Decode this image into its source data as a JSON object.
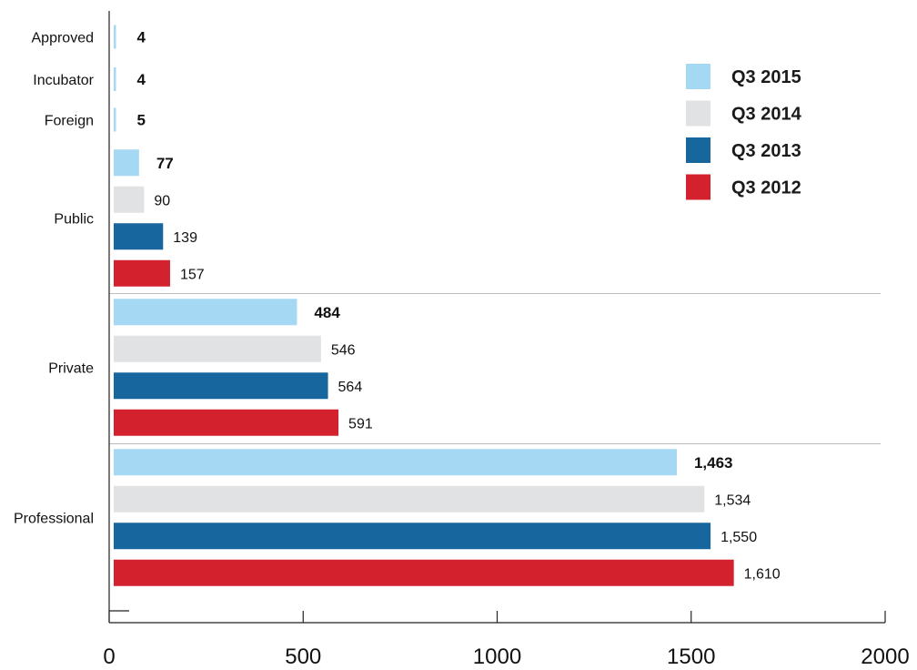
{
  "chart_data": {
    "type": "bar",
    "orientation": "horizontal",
    "title": "",
    "xlabel": "",
    "ylabel": "",
    "xlim": [
      0,
      2000
    ],
    "x_ticks": [
      "0",
      "500",
      "1000",
      "1500",
      "2000"
    ],
    "categories": [
      "Approved",
      "Incubator",
      "Foreign",
      "Public",
      "Private",
      "Professional"
    ],
    "series": [
      {
        "name": "Q3 2015",
        "color": "#a5d8f3",
        "values": [
          4,
          4,
          5,
          77,
          484,
          1463
        ],
        "labels": [
          "4",
          "4",
          "5",
          "77",
          "484",
          "1,463"
        ],
        "label_style": "bold"
      },
      {
        "name": "Q3 2014",
        "color": "#e1e2e4",
        "values": [
          null,
          null,
          null,
          90,
          546,
          1534
        ],
        "labels": [
          "",
          "",
          "",
          "90",
          "546",
          "1,534"
        ],
        "label_style": "normal"
      },
      {
        "name": "Q3 2013",
        "color": "#17669d",
        "values": [
          null,
          null,
          null,
          139,
          564,
          1550
        ],
        "labels": [
          "",
          "",
          "",
          "139",
          "564",
          "1,550"
        ],
        "label_style": "normal"
      },
      {
        "name": "Q3 2012",
        "color": "#d3222e",
        "values": [
          null,
          null,
          null,
          157,
          591,
          1610
        ],
        "labels": [
          "",
          "",
          "",
          "157",
          "591",
          "1,610"
        ],
        "label_style": "normal"
      }
    ],
    "legend": {
      "position": "top-right"
    },
    "grid": false
  }
}
